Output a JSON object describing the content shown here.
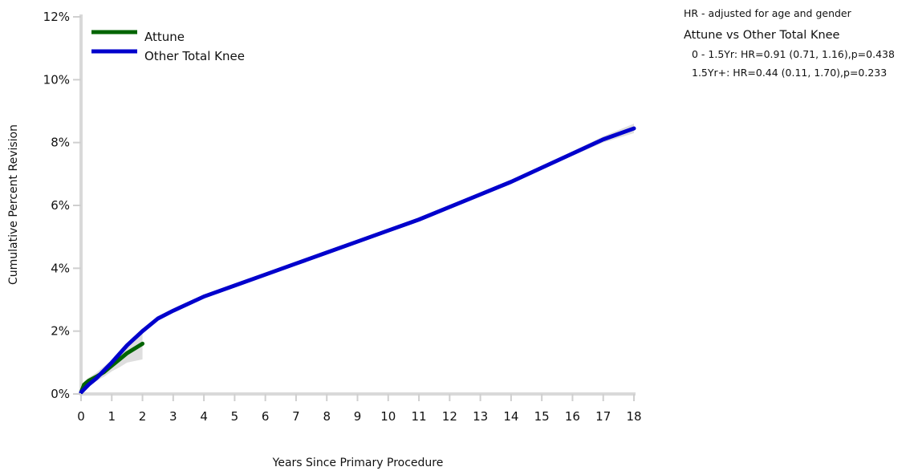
{
  "hr_panel": {
    "note": "HR - adjusted for age and gender",
    "comparison": "Attune vs Other Total Knee",
    "rows": [
      "0 - 1.5Yr: HR=0.91 (0.71, 1.16),p=0.438",
      "1.5Yr+: HR=0.44 (0.11, 1.70),p=0.233"
    ]
  },
  "chart_data": {
    "type": "line",
    "title": "",
    "xlabel": "Years Since Primary Procedure",
    "ylabel": "Cumulative Percent Revision",
    "xlim": [
      0,
      18
    ],
    "ylim": [
      0,
      12
    ],
    "x_ticks": [
      "0",
      "1",
      "2",
      "3",
      "4",
      "5",
      "6",
      "7",
      "8",
      "9",
      "10",
      "11",
      "12",
      "13",
      "14",
      "15",
      "16",
      "17",
      "18"
    ],
    "y_ticks": [
      "0%",
      "2%",
      "4%",
      "6%",
      "8%",
      "10%",
      "12%"
    ],
    "grid": false,
    "legend_position": "top-left",
    "series": [
      {
        "name": "Attune",
        "color": "#006400",
        "points": [
          [
            0,
            0.05
          ],
          [
            0.1,
            0.3
          ],
          [
            0.25,
            0.42
          ],
          [
            0.5,
            0.55
          ],
          [
            0.75,
            0.7
          ],
          [
            1,
            0.9
          ],
          [
            1.25,
            1.1
          ],
          [
            1.5,
            1.3
          ],
          [
            1.75,
            1.45
          ],
          [
            2,
            1.6
          ]
        ],
        "ci_lower": [
          0.0,
          0.2,
          0.32,
          0.42,
          0.55,
          0.72,
          0.85,
          1.0,
          1.05,
          1.1
        ],
        "ci_upper": [
          0.1,
          0.4,
          0.52,
          0.68,
          0.88,
          1.08,
          1.35,
          1.6,
          1.85,
          2.1
        ]
      },
      {
        "name": "Other Total Knee",
        "color": "#0000cc",
        "points": [
          [
            0,
            0.05
          ],
          [
            0.25,
            0.3
          ],
          [
            0.5,
            0.5
          ],
          [
            0.75,
            0.75
          ],
          [
            1,
            1.0
          ],
          [
            1.5,
            1.55
          ],
          [
            2,
            2.0
          ],
          [
            2.5,
            2.4
          ],
          [
            3,
            2.65
          ],
          [
            4,
            3.1
          ],
          [
            5,
            3.45
          ],
          [
            6,
            3.8
          ],
          [
            7,
            4.15
          ],
          [
            8,
            4.5
          ],
          [
            9,
            4.85
          ],
          [
            10,
            5.2
          ],
          [
            11,
            5.55
          ],
          [
            12,
            5.95
          ],
          [
            13,
            6.35
          ],
          [
            14,
            6.75
          ],
          [
            15,
            7.2
          ],
          [
            16,
            7.65
          ],
          [
            17,
            8.1
          ],
          [
            18,
            8.45
          ]
        ],
        "ci_lower": [
          0.0,
          0.25,
          0.45,
          0.7,
          0.95,
          1.5,
          1.95,
          2.35,
          2.6,
          3.05,
          3.4,
          3.75,
          4.1,
          4.45,
          4.8,
          5.15,
          5.5,
          5.9,
          6.3,
          6.7,
          7.15,
          7.58,
          8.0,
          8.3
        ],
        "ci_upper": [
          0.1,
          0.35,
          0.55,
          0.8,
          1.05,
          1.6,
          2.05,
          2.45,
          2.7,
          3.15,
          3.5,
          3.85,
          4.2,
          4.55,
          4.9,
          5.25,
          5.6,
          6.0,
          6.4,
          6.8,
          7.25,
          7.72,
          8.2,
          8.6
        ]
      }
    ]
  }
}
